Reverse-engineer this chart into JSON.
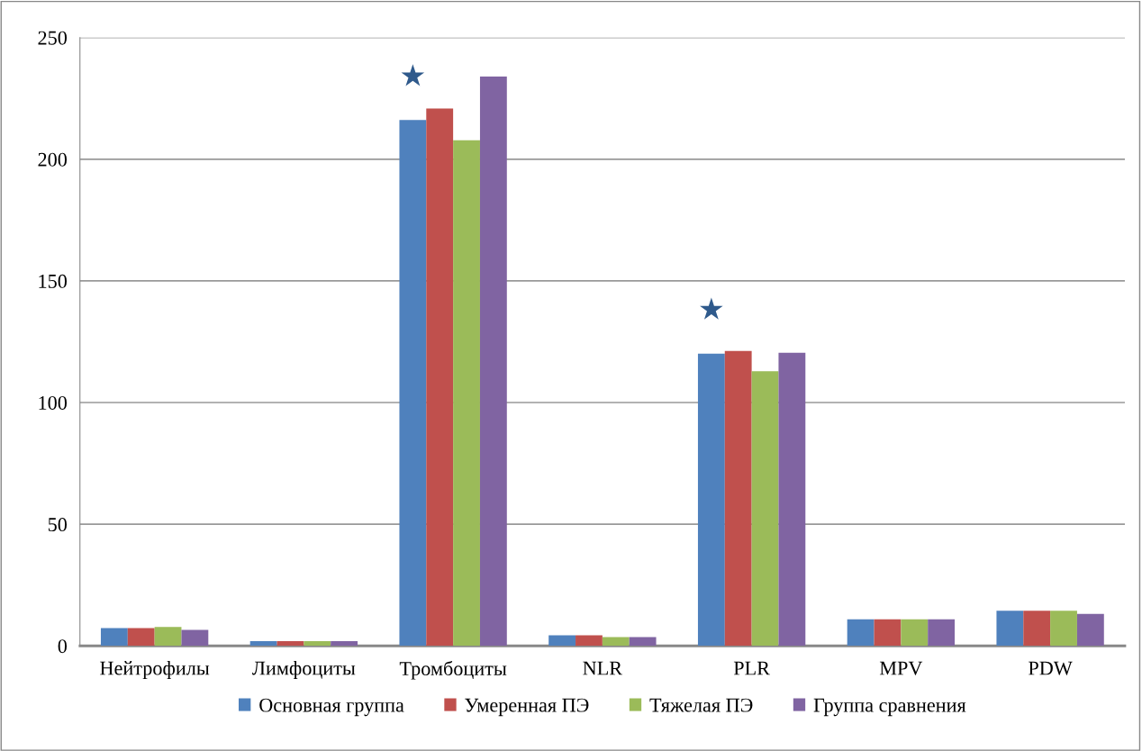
{
  "chart_data": {
    "type": "bar",
    "categories": [
      "Нейтрофилы",
      "Лимфоциты",
      "Тромбоциты",
      "NLR",
      "PLR",
      "MPV",
      "PDW"
    ],
    "series": [
      {
        "name": "Основная группа",
        "color": "#4f81bd",
        "values": [
          7.3,
          1.9,
          216.1,
          4.3,
          120.1,
          10.9,
          14.4
        ]
      },
      {
        "name": "Умеренная ПЭ",
        "color": "#c0504d",
        "values": [
          7.3,
          1.9,
          220.8,
          4.3,
          121.2,
          10.9,
          14.4
        ]
      },
      {
        "name": "Тяжелая ПЭ",
        "color": "#9bbb59",
        "values": [
          7.8,
          1.9,
          207.8,
          3.6,
          112.9,
          10.9,
          14.4
        ]
      },
      {
        "name": "Группа сравнения",
        "color": "#8064a2",
        "values": [
          6.6,
          1.9,
          234.0,
          3.6,
          120.5,
          10.9,
          13.1
        ]
      }
    ],
    "ylim": [
      0,
      250
    ],
    "yticks": [
      0,
      50,
      100,
      150,
      200,
      250
    ],
    "grid": "y",
    "legend": "bottom",
    "annotations": [
      {
        "text": "★",
        "x": "Тромбоциты",
        "y": 216.1
      },
      {
        "text": "★",
        "x": "PLR",
        "y": 120.1
      }
    ]
  }
}
